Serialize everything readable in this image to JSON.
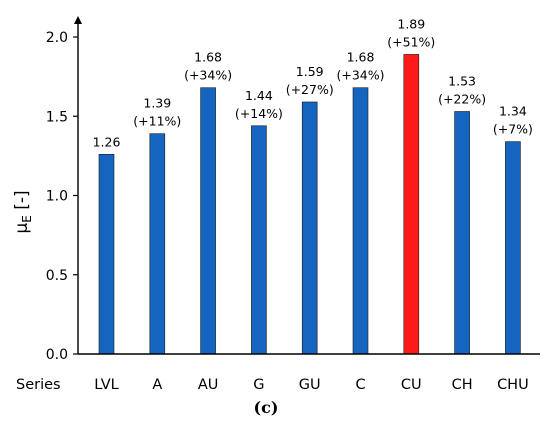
{
  "chart_data": {
    "type": "bar",
    "categories_label": "Series",
    "categories": [
      "LVL",
      "A",
      "AU",
      "G",
      "GU",
      "C",
      "CU",
      "CH",
      "CHU"
    ],
    "values": [
      1.26,
      1.39,
      1.68,
      1.44,
      1.59,
      1.68,
      1.89,
      1.53,
      1.34
    ],
    "value_labels": [
      "1.26",
      "1.39",
      "1.68",
      "1.44",
      "1.59",
      "1.68",
      "1.89",
      "1.53",
      "1.34"
    ],
    "change_labels": [
      "",
      "(+11%)",
      "(+34%)",
      "(+14%)",
      "(+27%)",
      "(+34%)",
      "(+51%)",
      "(+22%)",
      "(+7%)"
    ],
    "bar_colors": [
      "#1565c0",
      "#1565c0",
      "#1565c0",
      "#1565c0",
      "#1565c0",
      "#1565c0",
      "#ff1a1a",
      "#1565c0",
      "#1565c0"
    ],
    "ylabel_main": "μ",
    "ylabel_sub": "E",
    "ylabel_unit": " [-]",
    "ylim": [
      0,
      2.0
    ],
    "yticks": [
      "0.0",
      "0.5",
      "1.0",
      "1.5",
      "2.0"
    ],
    "panel_label": "(c)",
    "grid": false
  }
}
